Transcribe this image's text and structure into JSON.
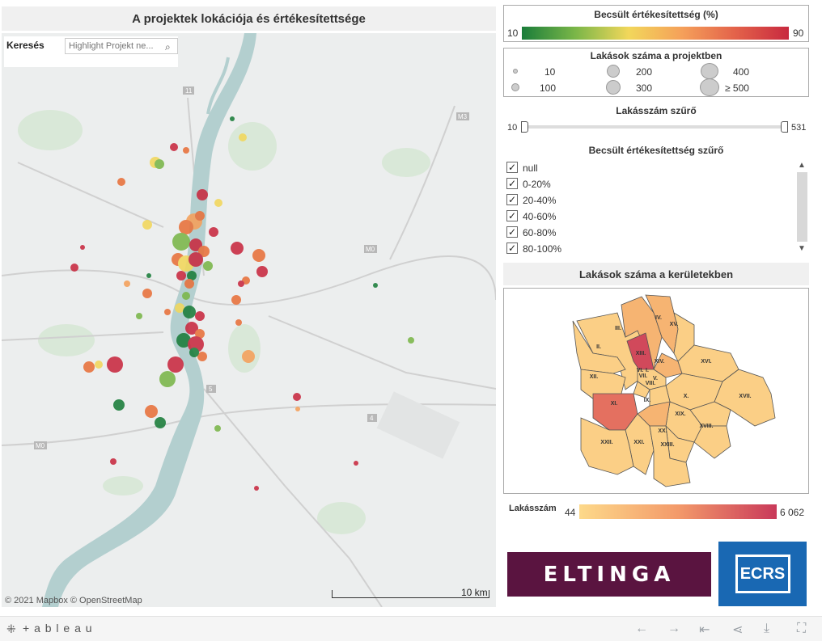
{
  "dashboard": {
    "map_title": "A projektek lokációja és értékesítettsége",
    "search": {
      "label": "Keresés",
      "placeholder": "Highlight Projekt ne..."
    },
    "attribution": "© 2021 Mapbox  © OpenStreetMap",
    "scale_label": "10 km",
    "road_labels": [
      "11",
      "M3",
      "M0",
      "M0",
      "5",
      "4",
      "M0"
    ]
  },
  "color_legend": {
    "title": "Becsült értékesítettség (%)",
    "min": "10",
    "max": "90"
  },
  "size_legend": {
    "title": "Lakások száma a projektben",
    "items": [
      "10",
      "200",
      "400",
      "100",
      "300",
      "≥ 500"
    ]
  },
  "count_filter": {
    "title": "Lakásszám szűrő",
    "min": "10",
    "max": "531"
  },
  "sales_filter": {
    "title": "Becsült értékesítettség szűrő",
    "options": [
      {
        "label": "null",
        "checked": true
      },
      {
        "label": "0-20%",
        "checked": true
      },
      {
        "label": "20-40%",
        "checked": true
      },
      {
        "label": "40-60%",
        "checked": true
      },
      {
        "label": "60-80%",
        "checked": true
      },
      {
        "label": "80-100%",
        "checked": true
      }
    ]
  },
  "district_panel": {
    "title": "Lakások száma a kerületekben",
    "districts": [
      "I.",
      "II.",
      "III.",
      "IV.",
      "V.",
      "VI.",
      "VII.",
      "VIII.",
      "IX.",
      "X.",
      "XI.",
      "XII.",
      "XIII.",
      "XIV.",
      "XV.",
      "XVI.",
      "XVII.",
      "XVIII.",
      "XIX.",
      "XX.",
      "XXI.",
      "XXII.",
      "XXIII."
    ],
    "legend_label": "Lakásszám",
    "legend_min": "44",
    "legend_max": "6 062"
  },
  "logos": {
    "eltinga": "ELTINGA",
    "ecrs": "ECRS"
  },
  "footer": {
    "brand": "+ a b l e a u"
  },
  "colors": {
    "green": "#1a7d3a",
    "yellow": "#f2d75b",
    "orange": "#e8703a",
    "red": "#c8293f"
  }
}
